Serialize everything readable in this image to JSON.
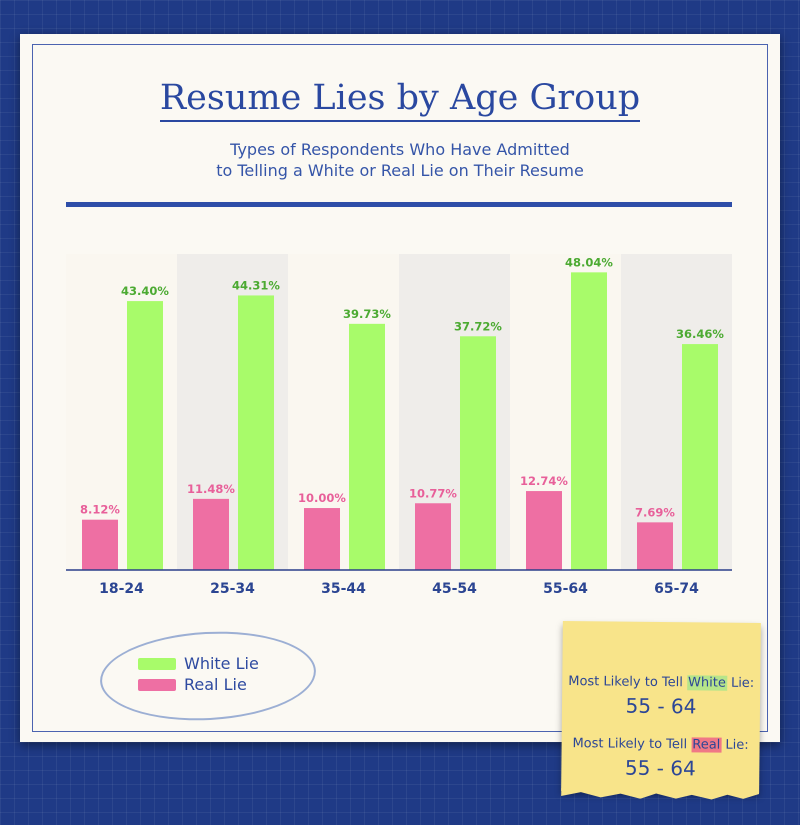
{
  "title": "Resume Lies by Age Group",
  "subtitle_line1": "Types of Respondents Who Have Admitted",
  "subtitle_line2": "to Telling a White or Real Lie on Their Resume",
  "chart_data": {
    "type": "bar",
    "categories": [
      "18-24",
      "25-34",
      "35-44",
      "45-54",
      "55-64",
      "65-74"
    ],
    "series": [
      {
        "name": "Real Lie",
        "color": "#ee6fa3",
        "label_color": "#e8609a",
        "values": [
          8.12,
          11.48,
          10.0,
          10.77,
          12.74,
          7.69
        ],
        "labels": [
          "8.12%",
          "11.48%",
          "10.00%",
          "10.77%",
          "12.74%",
          "7.69%"
        ]
      },
      {
        "name": "White Lie",
        "color": "#a8fb6a",
        "label_color": "#4caa32",
        "values": [
          43.4,
          44.31,
          39.73,
          37.72,
          48.04,
          36.46
        ],
        "labels": [
          "43.40%",
          "44.31%",
          "39.73%",
          "37.72%",
          "48.04%",
          "36.46%"
        ]
      }
    ],
    "ylim": [
      0,
      51
    ],
    "value_suffix": "%",
    "legend_position": "bottom-left",
    "alternating_column_shading": true
  },
  "legend": {
    "white_label": "White Lie",
    "real_label": "Real Lie",
    "white_color": "#a8fb6a",
    "real_color": "#ee6fa3"
  },
  "note": {
    "white_prefix": "Most Likely to Tell ",
    "white_word": "White",
    "white_suffix": " Lie:",
    "white_value": "55 - 64",
    "real_prefix": "Most Likely to Tell ",
    "real_word": "Real",
    "real_suffix": " Lie:",
    "real_value": "55 - 64"
  },
  "colors": {
    "background": "#1f3a86",
    "accent": "#2a48a0"
  }
}
